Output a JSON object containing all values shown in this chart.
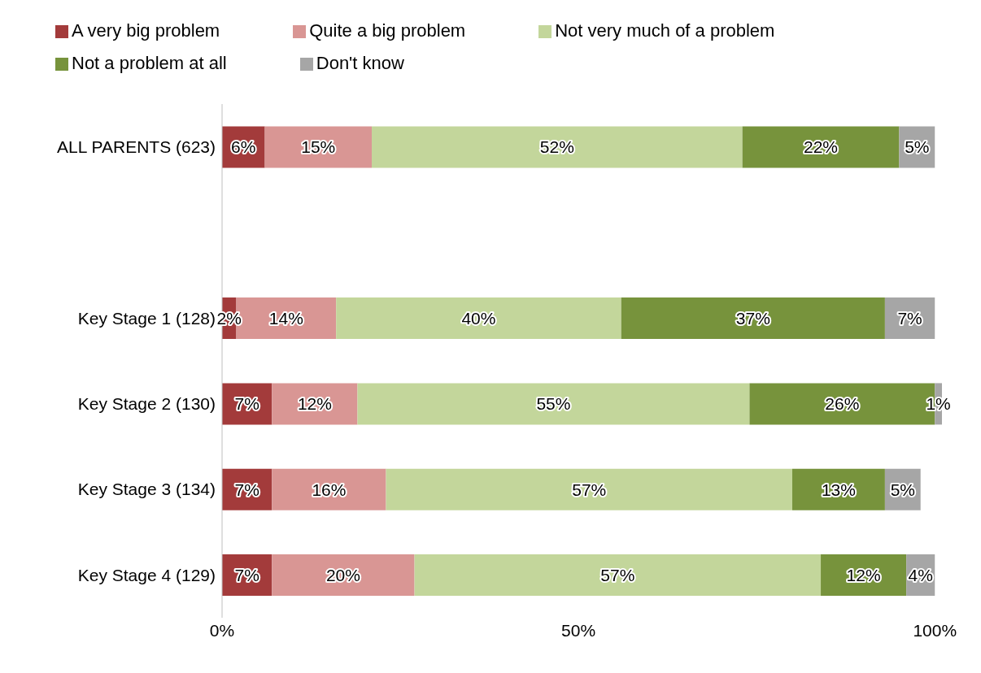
{
  "chart_data": {
    "type": "bar",
    "orientation": "horizontal",
    "stacked": true,
    "categories": [
      "ALL PARENTS (623)",
      null,
      "Key Stage 1 (128)",
      "Key Stage 2 (130)",
      "Key Stage 3 (134)",
      "Key Stage 4 (129)"
    ],
    "series": [
      {
        "name": "A very big problem",
        "color": "#a33b3b",
        "values": [
          6,
          null,
          2,
          7,
          7,
          7
        ],
        "value_labels": [
          "6%",
          null,
          "2%",
          "7%",
          "7%",
          "7%"
        ]
      },
      {
        "name": "Quite a big problem",
        "color": "#d99694",
        "values": [
          15,
          null,
          14,
          12,
          16,
          20
        ],
        "value_labels": [
          "15%",
          null,
          "14%",
          "12%",
          "16%",
          "20%"
        ]
      },
      {
        "name": "Not very much of a problem",
        "color": "#c3d69b",
        "values": [
          52,
          null,
          40,
          55,
          57,
          57
        ],
        "value_labels": [
          "52%",
          null,
          "40%",
          "55%",
          "57%",
          "57%"
        ]
      },
      {
        "name": "Not a problem at all",
        "color": "#77933c",
        "values": [
          22,
          null,
          37,
          26,
          13,
          12
        ],
        "value_labels": [
          "22%",
          null,
          "37%",
          "26%",
          "13%",
          "12%"
        ]
      },
      {
        "name": "Don't know",
        "color": "#a6a6a6",
        "values": [
          5,
          null,
          7,
          1,
          5,
          4
        ],
        "value_labels": [
          "5%",
          null,
          "7%",
          "1%",
          "5%",
          "4%"
        ]
      }
    ],
    "xlim": [
      0,
      101
    ],
    "xticks": [
      {
        "value": 0,
        "label": "0%"
      },
      {
        "value": 50,
        "label": "50%"
      },
      {
        "value": 100,
        "label": "100%"
      }
    ],
    "grid": false,
    "legend": "top"
  }
}
